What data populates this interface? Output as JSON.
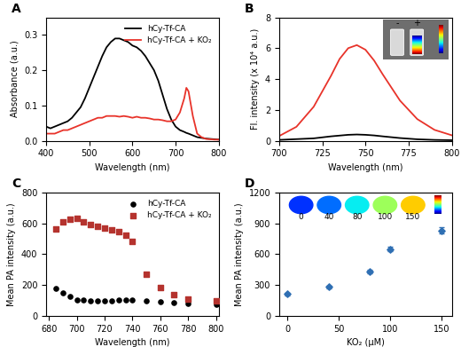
{
  "chart_data": [
    {
      "panel": "A",
      "type": "line",
      "x_label": "Wavelength (nm)",
      "y_label": "Absorbance (a.u.)",
      "xlim": [
        400,
        800
      ],
      "xticks": [
        400,
        500,
        600,
        700,
        800
      ],
      "ylim": [
        0.0,
        0.35
      ],
      "yticks": [
        0.0,
        0.1,
        0.2,
        0.3
      ],
      "legend": "upper right",
      "x": [
        400,
        410,
        420,
        430,
        440,
        450,
        460,
        470,
        480,
        490,
        500,
        510,
        520,
        530,
        540,
        550,
        560,
        570,
        580,
        590,
        600,
        610,
        620,
        630,
        640,
        650,
        660,
        670,
        680,
        690,
        700,
        710,
        720,
        725,
        730,
        740,
        750,
        760,
        770,
        780,
        790,
        800
      ],
      "series": [
        {
          "name": "hCy-Tf-CA",
          "color": "#000000",
          "values": [
            0.04,
            0.035,
            0.04,
            0.045,
            0.05,
            0.055,
            0.065,
            0.08,
            0.095,
            0.12,
            0.15,
            0.18,
            0.21,
            0.24,
            0.265,
            0.28,
            0.29,
            0.29,
            0.285,
            0.28,
            0.27,
            0.265,
            0.255,
            0.24,
            0.22,
            0.2,
            0.17,
            0.13,
            0.09,
            0.06,
            0.04,
            0.03,
            0.025,
            0.022,
            0.02,
            0.015,
            0.01,
            0.008,
            0.006,
            0.005,
            0.004,
            0.003
          ]
        },
        {
          "name": "hCy-Tf-CA + KO₂",
          "color": "#e8332a",
          "values": [
            0.02,
            0.02,
            0.02,
            0.025,
            0.03,
            0.03,
            0.035,
            0.04,
            0.045,
            0.05,
            0.055,
            0.06,
            0.065,
            0.065,
            0.07,
            0.07,
            0.07,
            0.068,
            0.07,
            0.068,
            0.065,
            0.068,
            0.065,
            0.065,
            0.063,
            0.06,
            0.06,
            0.058,
            0.055,
            0.055,
            0.06,
            0.08,
            0.12,
            0.15,
            0.14,
            0.07,
            0.02,
            0.01,
            0.005,
            0.004,
            0.003,
            0.003
          ]
        }
      ]
    },
    {
      "panel": "B",
      "type": "line",
      "x_label": "Wavelength (nm)",
      "y_label": "Fl. intensity (x 10⁴ a.u.)",
      "xlim": [
        700,
        800
      ],
      "xticks": [
        700,
        725,
        750,
        775,
        800
      ],
      "ylim": [
        0,
        8
      ],
      "yticks": [
        0,
        2,
        4,
        6,
        8
      ],
      "annotations": [
        "-",
        "+"
      ],
      "x": [
        700,
        710,
        720,
        730,
        735,
        740,
        745,
        750,
        755,
        760,
        770,
        780,
        790,
        800
      ],
      "series": [
        {
          "color": "#000000",
          "values": [
            0.05,
            0.1,
            0.15,
            0.28,
            0.33,
            0.38,
            0.4,
            0.38,
            0.34,
            0.28,
            0.17,
            0.09,
            0.05,
            0.03
          ]
        },
        {
          "color": "#e8332a",
          "values": [
            0.3,
            0.9,
            2.2,
            4.2,
            5.3,
            6.0,
            6.2,
            5.9,
            5.2,
            4.3,
            2.6,
            1.4,
            0.7,
            0.35
          ]
        }
      ]
    },
    {
      "panel": "C",
      "type": "scatter",
      "x_label": "Wavelength (nm)",
      "y_label": "Mean PA intensity (a.u.)",
      "xlim": [
        678,
        802
      ],
      "xticks": [
        680,
        700,
        720,
        740,
        760,
        780,
        800
      ],
      "ylim": [
        0,
        800
      ],
      "yticks": [
        0,
        200,
        400,
        600,
        800
      ],
      "legend": "upper right",
      "x": [
        685,
        690,
        695,
        700,
        705,
        710,
        715,
        720,
        725,
        730,
        735,
        740,
        750,
        760,
        770,
        780,
        800
      ],
      "series": [
        {
          "name": "hCy-Tf-CA",
          "color": "#000000",
          "marker": "circle",
          "values": [
            175,
            150,
            125,
            105,
            100,
            95,
            95,
            95,
            95,
            100,
            100,
            100,
            95,
            90,
            85,
            80,
            75
          ]
        },
        {
          "name": "hCy-Tf-CA + KO₂",
          "color": "#b5332e",
          "marker": "square",
          "values": [
            565,
            610,
            625,
            630,
            610,
            590,
            580,
            570,
            555,
            545,
            520,
            480,
            270,
            185,
            135,
            110,
            95
          ]
        }
      ]
    },
    {
      "panel": "D",
      "type": "scatter",
      "x_label": "KO₂ (μM)",
      "y_label": "Mean PA intensity (a.u.)",
      "xlim": [
        -8,
        160
      ],
      "xticks": [
        0,
        50,
        100,
        150
      ],
      "ylim": [
        0,
        1200
      ],
      "yticks": [
        0,
        300,
        600,
        900,
        1200
      ],
      "x": [
        0,
        40,
        80,
        100,
        150
      ],
      "series": [
        {
          "color": "#2f6fb3",
          "marker": "diamond",
          "values": [
            210,
            280,
            430,
            650,
            830
          ],
          "error": [
            12,
            12,
            20,
            25,
            30
          ]
        }
      ]
    }
  ]
}
